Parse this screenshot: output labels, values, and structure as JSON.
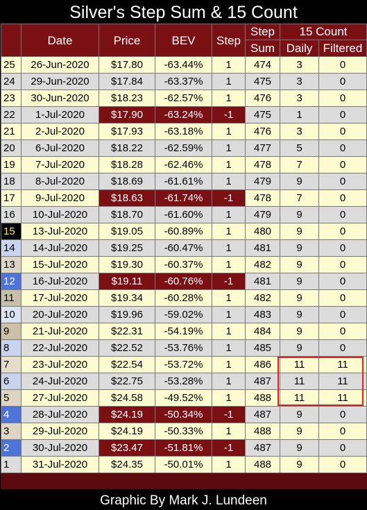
{
  "title": "Silver's Step Sum & 15 Count",
  "footer": "Graphic By Mark J. Lundeen",
  "headers": {
    "date": "Date",
    "price": "Price",
    "bev": "BEV",
    "step": "Step",
    "step_sum_top": "Step",
    "step_sum_bottom": "Sum",
    "count_group": "15 Count",
    "daily": "Daily",
    "filtered": "Filtered"
  },
  "rows": [
    {
      "idx": "25",
      "date": "26-Jun-2020",
      "price": "$17.80",
      "bev": "-63.44%",
      "step": "1",
      "sum": "474",
      "daily": "3",
      "filtered": "0"
    },
    {
      "idx": "24",
      "date": "29-Jun-2020",
      "price": "$17.84",
      "bev": "-63.37%",
      "step": "1",
      "sum": "475",
      "daily": "3",
      "filtered": "0"
    },
    {
      "idx": "23",
      "date": "30-Jun-2020",
      "price": "$18.23",
      "bev": "-62.57%",
      "step": "1",
      "sum": "476",
      "daily": "3",
      "filtered": "0"
    },
    {
      "idx": "22",
      "date": "1-Jul-2020",
      "price": "$17.90",
      "bev": "-63.24%",
      "step": "-1",
      "sum": "475",
      "daily": "1",
      "filtered": "0"
    },
    {
      "idx": "21",
      "date": "2-Jul-2020",
      "price": "$17.93",
      "bev": "-63.18%",
      "step": "1",
      "sum": "476",
      "daily": "3",
      "filtered": "0"
    },
    {
      "idx": "20",
      "date": "6-Jul-2020",
      "price": "$18.22",
      "bev": "-62.59%",
      "step": "1",
      "sum": "477",
      "daily": "5",
      "filtered": "0"
    },
    {
      "idx": "19",
      "date": "7-Jul-2020",
      "price": "$18.28",
      "bev": "-62.46%",
      "step": "1",
      "sum": "478",
      "daily": "7",
      "filtered": "0"
    },
    {
      "idx": "18",
      "date": "8-Jul-2020",
      "price": "$18.69",
      "bev": "-61.61%",
      "step": "1",
      "sum": "479",
      "daily": "9",
      "filtered": "0"
    },
    {
      "idx": "17",
      "date": "9-Jul-2020",
      "price": "$18.63",
      "bev": "-61.74%",
      "step": "-1",
      "sum": "478",
      "daily": "7",
      "filtered": "0"
    },
    {
      "idx": "16",
      "date": "10-Jul-2020",
      "price": "$18.70",
      "bev": "-61.60%",
      "step": "1",
      "sum": "479",
      "daily": "9",
      "filtered": "0"
    },
    {
      "idx": "15",
      "date": "13-Jul-2020",
      "price": "$19.05",
      "bev": "-60.89%",
      "step": "1",
      "sum": "480",
      "daily": "9",
      "filtered": "0"
    },
    {
      "idx": "14",
      "date": "14-Jul-2020",
      "price": "$19.25",
      "bev": "-60.47%",
      "step": "1",
      "sum": "481",
      "daily": "9",
      "filtered": "0"
    },
    {
      "idx": "13",
      "date": "15-Jul-2020",
      "price": "$19.30",
      "bev": "-60.37%",
      "step": "1",
      "sum": "482",
      "daily": "9",
      "filtered": "0"
    },
    {
      "idx": "12",
      "date": "16-Jul-2020",
      "price": "$19.11",
      "bev": "-60.76%",
      "step": "-1",
      "sum": "481",
      "daily": "9",
      "filtered": "0"
    },
    {
      "idx": "11",
      "date": "17-Jul-2020",
      "price": "$19.34",
      "bev": "-60.28%",
      "step": "1",
      "sum": "482",
      "daily": "9",
      "filtered": "0"
    },
    {
      "idx": "10",
      "date": "20-Jul-2020",
      "price": "$19.96",
      "bev": "-59.02%",
      "step": "1",
      "sum": "483",
      "daily": "9",
      "filtered": "0"
    },
    {
      "idx": "9",
      "date": "21-Jul-2020",
      "price": "$22.31",
      "bev": "-54.19%",
      "step": "1",
      "sum": "484",
      "daily": "9",
      "filtered": "0"
    },
    {
      "idx": "8",
      "date": "22-Jul-2020",
      "price": "$22.52",
      "bev": "-53.76%",
      "step": "1",
      "sum": "485",
      "daily": "9",
      "filtered": "0"
    },
    {
      "idx": "7",
      "date": "23-Jul-2020",
      "price": "$22.54",
      "bev": "-53.72%",
      "step": "1",
      "sum": "486",
      "daily": "11",
      "filtered": "11"
    },
    {
      "idx": "6",
      "date": "24-Jul-2020",
      "price": "$22.75",
      "bev": "-53.28%",
      "step": "1",
      "sum": "487",
      "daily": "11",
      "filtered": "11"
    },
    {
      "idx": "5",
      "date": "27-Jul-2020",
      "price": "$24.58",
      "bev": "-49.52%",
      "step": "1",
      "sum": "488",
      "daily": "11",
      "filtered": "11"
    },
    {
      "idx": "4",
      "date": "28-Jul-2020",
      "price": "$24.19",
      "bev": "-50.34%",
      "step": "-1",
      "sum": "487",
      "daily": "9",
      "filtered": "0"
    },
    {
      "idx": "3",
      "date": "29-Jul-2020",
      "price": "$24.19",
      "bev": "-50.33%",
      "step": "1",
      "sum": "488",
      "daily": "9",
      "filtered": "0"
    },
    {
      "idx": "2",
      "date": "30-Jul-2020",
      "price": "$23.47",
      "bev": "-51.81%",
      "step": "-1",
      "sum": "487",
      "daily": "9",
      "filtered": "0"
    },
    {
      "idx": "1",
      "date": "31-Jul-2020",
      "price": "$24.35",
      "bev": "-50.01%",
      "step": "1",
      "sum": "488",
      "daily": "9",
      "filtered": "0"
    }
  ],
  "colors": {
    "header_bg": "#7b1014",
    "row_odd": "#fdfbd0",
    "row_even": "#dcdcdc",
    "highlight_border": "#e02020"
  }
}
